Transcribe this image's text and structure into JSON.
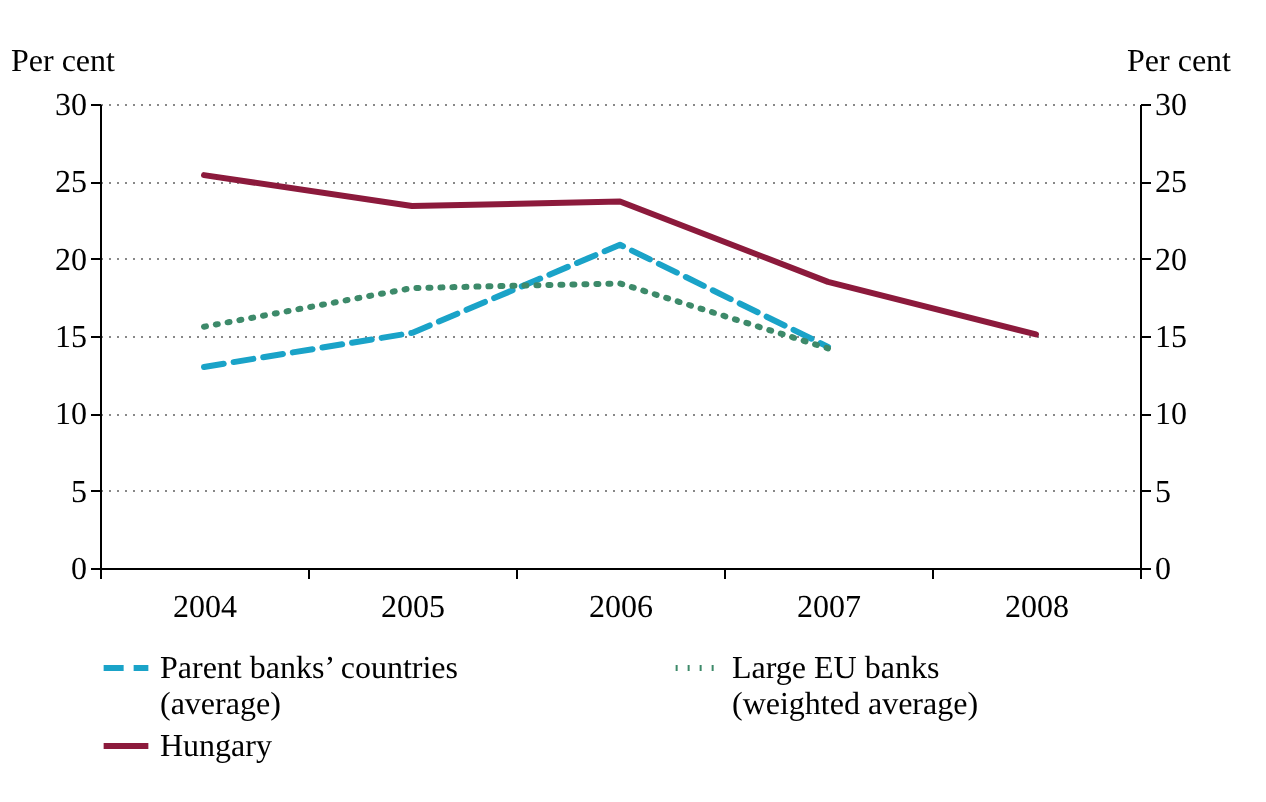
{
  "chart_data": {
    "type": "line",
    "ylabel": "Per cent",
    "y2label": "Per cent",
    "categories": [
      "2004",
      "2005",
      "2006",
      "2007",
      "2008"
    ],
    "series": [
      {
        "name": "Parent banks’ countries (average)",
        "color": "#1aa3c8",
        "line_style": "dashed",
        "values": [
          13.0,
          15.2,
          20.9,
          14.3,
          null
        ]
      },
      {
        "name": "Large EU banks (weighted average)",
        "color": "#3d8a6a",
        "line_style": "dotted",
        "values": [
          15.6,
          18.1,
          18.4,
          14.2,
          null
        ]
      },
      {
        "name": "Hungary",
        "color": "#8c1a3c",
        "line_style": "solid",
        "values": [
          25.4,
          23.4,
          23.7,
          18.5,
          15.1
        ]
      }
    ],
    "ylim": [
      0,
      30
    ],
    "yticks": [
      0,
      5,
      10,
      15,
      20,
      25,
      30
    ],
    "y2lim": [
      0,
      30
    ],
    "y2ticks": [
      0,
      5,
      10,
      15,
      20,
      25,
      30
    ],
    "grid": "y",
    "legend": "bottom"
  }
}
